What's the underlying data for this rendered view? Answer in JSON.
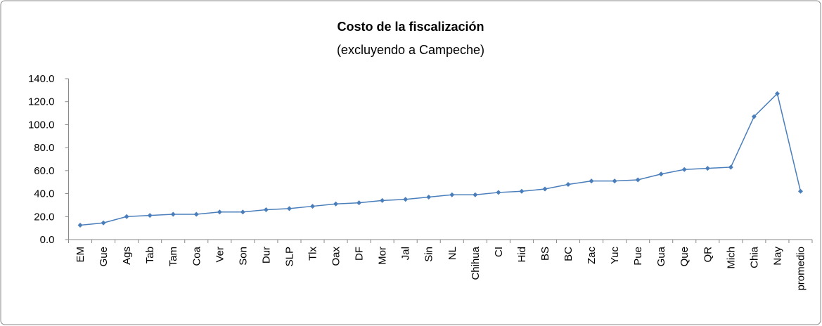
{
  "chart_data": {
    "type": "line",
    "title": "Costo de la fiscalización",
    "subtitle": "(excluyendo a Campeche)",
    "categories": [
      "EM",
      "Gue",
      "Ags",
      "Tab",
      "Tam",
      "Coa",
      "Ver",
      "Son",
      "Dur",
      "SLP",
      "Tlx",
      "Oax",
      "DF",
      "Mor",
      "Jal",
      "Sin",
      "NL",
      "Chihua",
      "CI",
      "Hid",
      "BS",
      "BC",
      "Zac",
      "Yuc",
      "Pue",
      "Gua",
      "Que",
      "QR",
      "Mich",
      "Chia",
      "Nay",
      "promedio"
    ],
    "values": [
      12.5,
      14.5,
      20,
      21,
      22,
      22,
      24,
      24,
      26,
      27,
      29,
      31,
      32,
      34,
      35,
      37,
      39,
      39,
      41,
      42,
      44,
      48,
      51,
      51,
      52,
      57,
      61,
      62,
      63,
      107,
      127,
      42
    ],
    "color": "#4a7ebb",
    "ylim": [
      0,
      140
    ],
    "yticks": [
      {
        "value": 0,
        "label": "0.0"
      },
      {
        "value": 20,
        "label": "20.0"
      },
      {
        "value": 40,
        "label": "40.0"
      },
      {
        "value": 60,
        "label": "60.0"
      },
      {
        "value": 80,
        "label": "80.0"
      },
      {
        "value": 100,
        "label": "100.0"
      },
      {
        "value": 120,
        "label": "120.0"
      },
      {
        "value": 140,
        "label": "140.0"
      }
    ],
    "grid": false
  }
}
